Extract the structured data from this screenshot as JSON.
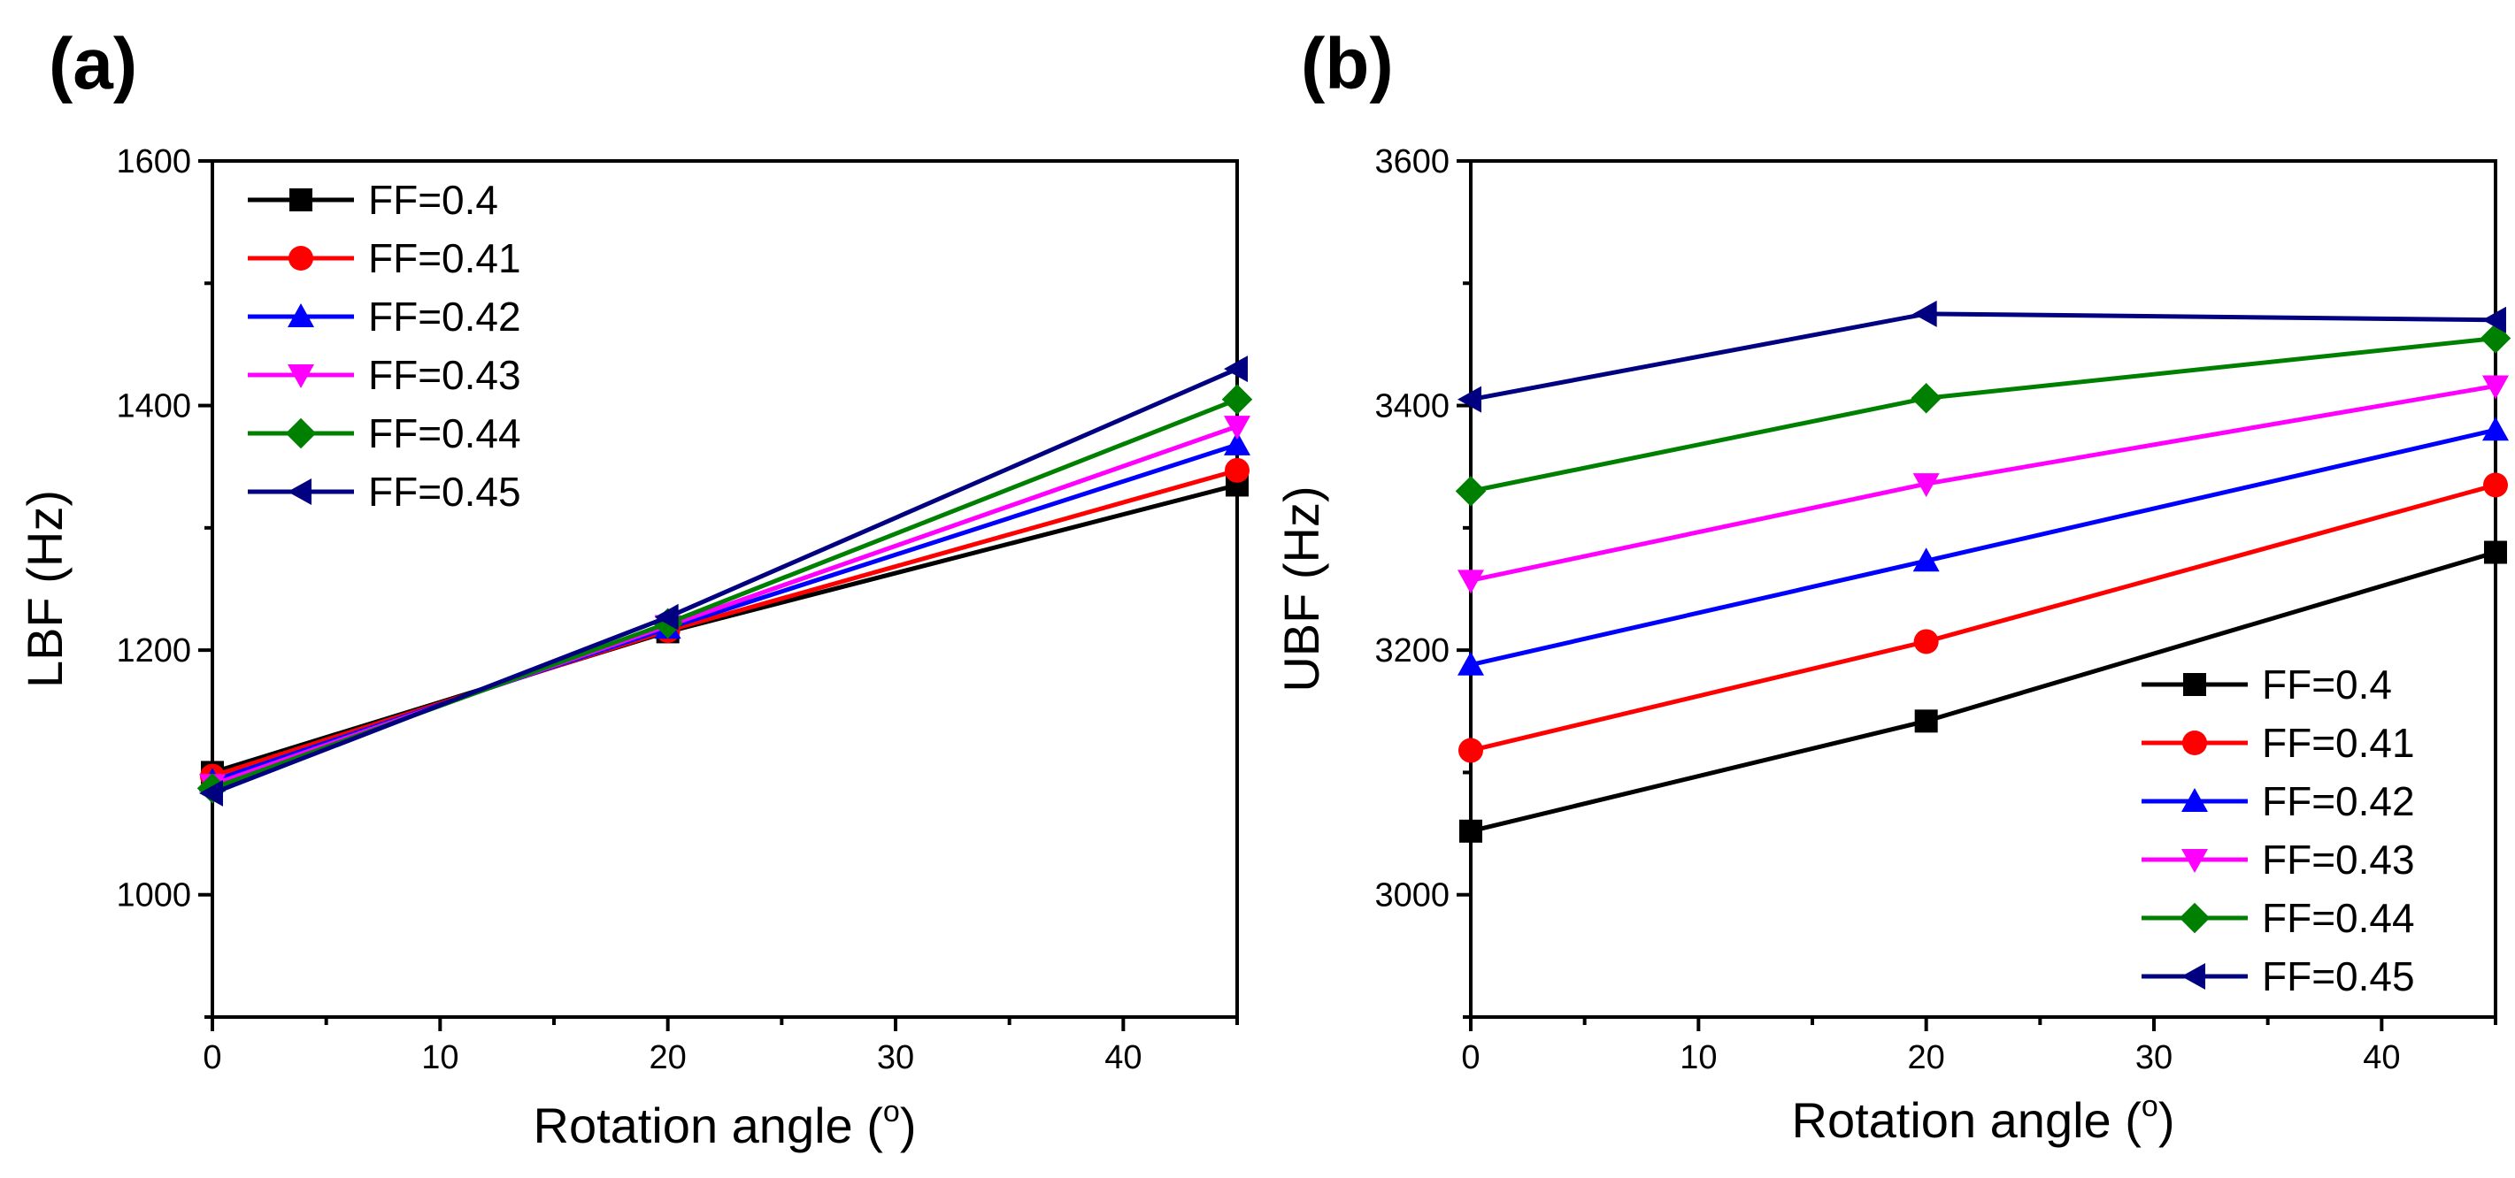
{
  "chart_data": [
    {
      "type": "line",
      "panel_label": "(a)",
      "xlabel": "Rotation angle (",
      "xlabel_unit": "o",
      "xlabel_close": ")",
      "ylabel": "LBF (Hz)",
      "xlim": [
        0,
        45
      ],
      "ylim": [
        900,
        1600
      ],
      "xticks": [
        0,
        10,
        20,
        30,
        40
      ],
      "yticks": [
        1000,
        1200,
        1400,
        1600
      ],
      "grid": false,
      "legend_position": "top-left",
      "x": [
        0,
        20,
        45
      ],
      "series": [
        {
          "name": "FF=0.4",
          "color": "#000000",
          "marker": "square",
          "values": [
            1100,
            1215,
            1335
          ]
        },
        {
          "name": "FF=0.41",
          "color": "#ff0000",
          "marker": "circle",
          "values": [
            1097,
            1216,
            1347
          ]
        },
        {
          "name": "FF=0.42",
          "color": "#0000ff",
          "marker": "triangle-up",
          "values": [
            1093,
            1218,
            1368
          ]
        },
        {
          "name": "FF=0.43",
          "color": "#ff00ff",
          "marker": "triangle-down",
          "values": [
            1090,
            1220,
            1383
          ]
        },
        {
          "name": "FF=0.44",
          "color": "#008000",
          "marker": "diamond",
          "values": [
            1087,
            1222,
            1405
          ]
        },
        {
          "name": "FF=0.45",
          "color": "#000080",
          "marker": "triangle-left",
          "values": [
            1083,
            1227,
            1430
          ]
        }
      ]
    },
    {
      "type": "line",
      "panel_label": "(b)",
      "xlabel": "Rotation angle (",
      "xlabel_unit": "o",
      "xlabel_close": ")",
      "ylabel": "UBF (Hz)",
      "xlim": [
        0,
        45
      ],
      "ylim": [
        2900,
        3600
      ],
      "xticks": [
        0,
        10,
        20,
        30,
        40
      ],
      "yticks": [
        3000,
        3200,
        3400,
        3600
      ],
      "grid": false,
      "legend_position": "bottom-right",
      "x": [
        0,
        20,
        45
      ],
      "series": [
        {
          "name": "FF=0.4",
          "color": "#000000",
          "marker": "square",
          "values": [
            3052,
            3142,
            3280
          ]
        },
        {
          "name": "FF=0.41",
          "color": "#ff0000",
          "marker": "circle",
          "values": [
            3118,
            3207,
            3335
          ]
        },
        {
          "name": "FF=0.42",
          "color": "#0000ff",
          "marker": "triangle-up",
          "values": [
            3188,
            3273,
            3380
          ]
        },
        {
          "name": "FF=0.43",
          "color": "#ff00ff",
          "marker": "triangle-down",
          "values": [
            3257,
            3336,
            3416
          ]
        },
        {
          "name": "FF=0.44",
          "color": "#008000",
          "marker": "diamond",
          "values": [
            3330,
            3406,
            3455
          ]
        },
        {
          "name": "FF=0.45",
          "color": "#000080",
          "marker": "triangle-left",
          "values": [
            3405,
            3475,
            3470
          ]
        }
      ]
    }
  ]
}
